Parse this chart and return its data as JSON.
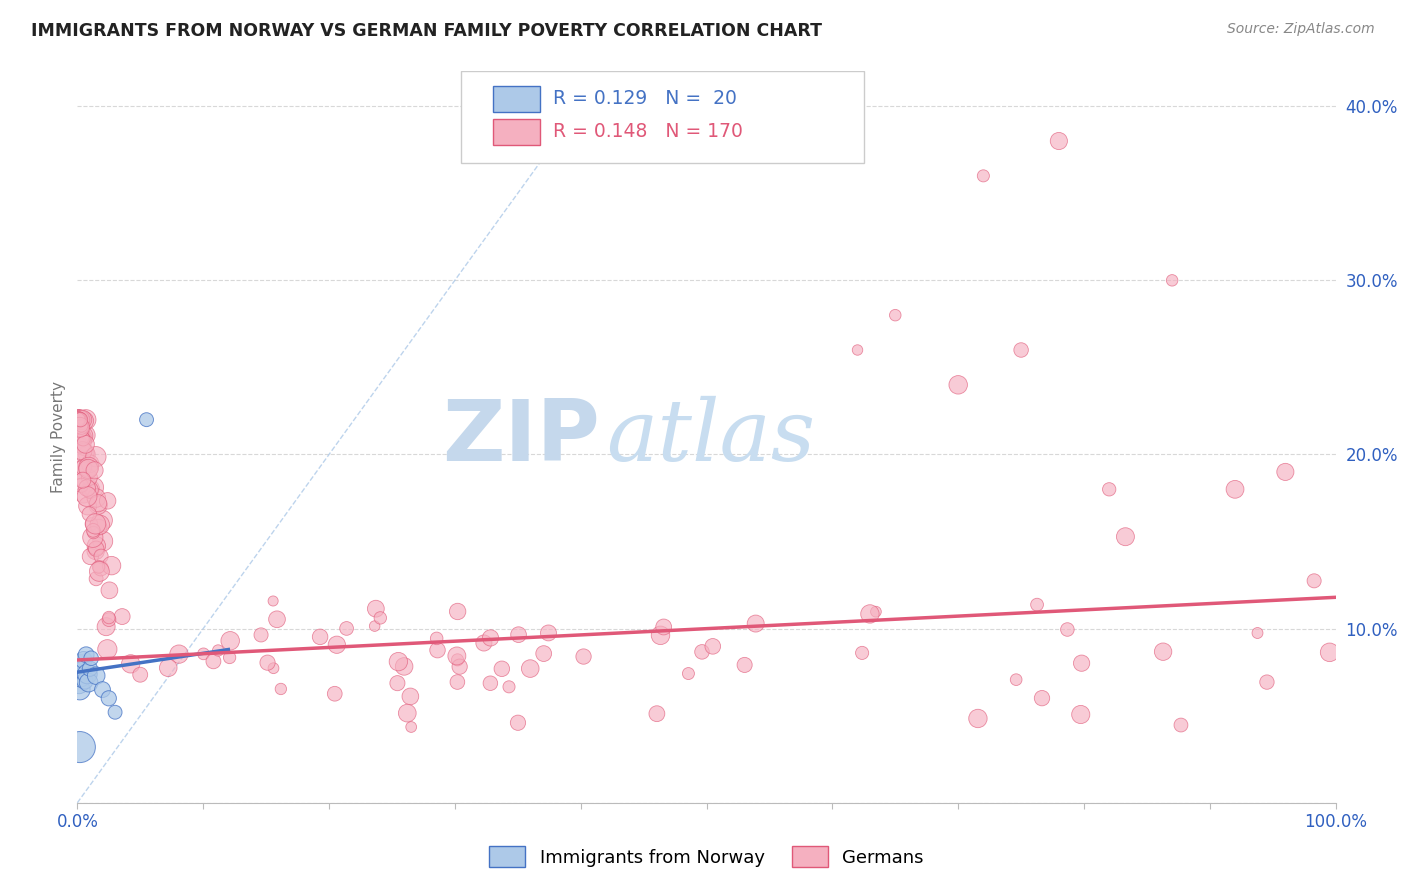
{
  "title": "IMMIGRANTS FROM NORWAY VS GERMAN FAMILY POVERTY CORRELATION CHART",
  "source_text": "Source: ZipAtlas.com",
  "ylabel": "Family Poverty",
  "legend_1_label": "Immigrants from Norway",
  "legend_2_label": "Germans",
  "R1": 0.129,
  "N1": 20,
  "R2": 0.148,
  "N2": 170,
  "xlim": [
    0,
    1.0
  ],
  "ylim": [
    0,
    0.42
  ],
  "color_norway": "#adc9e8",
  "color_germany": "#f5b0c0",
  "color_norway_line": "#4472c4",
  "color_germany_line": "#e05878",
  "color_diag": "#adc9e8",
  "watermark_zip_color": "#c5d8ec",
  "watermark_atlas_color": "#c8ddf0",
  "title_color": "#222222",
  "background_color": "#ffffff",
  "grid_color": "#d8d8d8",
  "tick_color": "#3060c0",
  "norway_trend_x0": 0.0,
  "norway_trend_y0": 0.075,
  "norway_trend_x1": 0.12,
  "norway_trend_y1": 0.088,
  "germany_trend_x0": 0.0,
  "germany_trend_y0": 0.082,
  "germany_trend_x1": 1.0,
  "germany_trend_y1": 0.118
}
